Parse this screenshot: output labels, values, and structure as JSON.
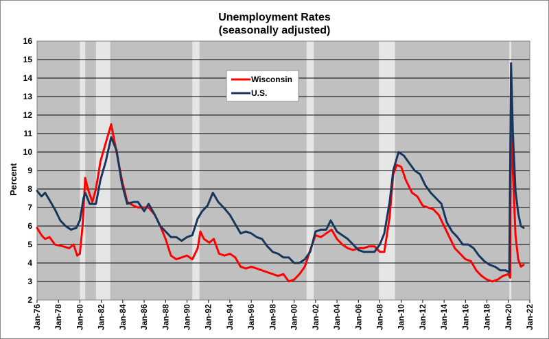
{
  "chart_data": {
    "type": "line",
    "title": "Unemployment Rates",
    "subtitle": "(seasonally adjusted)",
    "ylabel": "Percent",
    "xlabel": "",
    "ylim": [
      2,
      16
    ],
    "xlim": [
      "1976-01",
      "2022-01"
    ],
    "yticks": [
      "2",
      "3",
      "4",
      "5",
      "6",
      "7",
      "8",
      "9",
      "10",
      "11",
      "12",
      "13",
      "14",
      "15",
      "16"
    ],
    "xticks": [
      "Jan-76",
      "Jan-78",
      "Jan-80",
      "Jan-82",
      "Jan-84",
      "Jan-86",
      "Jan-88",
      "Jan-90",
      "Jan-92",
      "Jan-94",
      "Jan-96",
      "Jan-98",
      "Jan-00",
      "Jan-02",
      "Jan-04",
      "Jan-06",
      "Jan-08",
      "Jan-10",
      "Jan-12",
      "Jan-14",
      "Jan-16",
      "Jan-18",
      "Jan-20",
      "Jan-22"
    ],
    "grid": true,
    "legend_position": "top-center",
    "background_color": "#c0c0c0",
    "recession_color": "#e6e6e6",
    "recessions": [
      [
        "1980-01",
        "1980-07"
      ],
      [
        "1981-07",
        "1982-11"
      ],
      [
        "1990-07",
        "1991-03"
      ],
      [
        "2001-03",
        "2001-11"
      ],
      [
        "2007-12",
        "2009-06"
      ],
      [
        "2020-02",
        "2020-04"
      ]
    ],
    "series": [
      {
        "name": "Wisconsin",
        "color": "#ff0000",
        "points": [
          [
            "1976-01",
            5.9
          ],
          [
            "1976-06",
            5.5
          ],
          [
            "1976-10",
            5.3
          ],
          [
            "1977-03",
            5.4
          ],
          [
            "1977-09",
            5.0
          ],
          [
            "1978-06",
            4.9
          ],
          [
            "1979-01",
            4.8
          ],
          [
            "1979-06",
            5.0
          ],
          [
            "1979-10",
            4.4
          ],
          [
            "1980-01",
            4.5
          ],
          [
            "1980-04",
            6.0
          ],
          [
            "1980-07",
            8.6
          ],
          [
            "1980-10",
            8.0
          ],
          [
            "1981-03",
            7.3
          ],
          [
            "1981-07",
            8.0
          ],
          [
            "1981-12",
            9.5
          ],
          [
            "1982-06",
            10.5
          ],
          [
            "1982-12",
            11.5
          ],
          [
            "1983-06",
            10.0
          ],
          [
            "1983-12",
            8.5
          ],
          [
            "1984-06",
            7.3
          ],
          [
            "1985-01",
            7.1
          ],
          [
            "1985-06",
            7.0
          ],
          [
            "1986-06",
            7.0
          ],
          [
            "1987-01",
            6.6
          ],
          [
            "1987-07",
            6.0
          ],
          [
            "1988-01",
            5.3
          ],
          [
            "1988-07",
            4.4
          ],
          [
            "1989-01",
            4.2
          ],
          [
            "1989-07",
            4.3
          ],
          [
            "1990-01",
            4.4
          ],
          [
            "1990-07",
            4.2
          ],
          [
            "1991-01",
            4.8
          ],
          [
            "1991-04",
            5.7
          ],
          [
            "1991-08",
            5.3
          ],
          [
            "1992-02",
            5.1
          ],
          [
            "1992-07",
            5.3
          ],
          [
            "1993-01",
            4.5
          ],
          [
            "1993-07",
            4.4
          ],
          [
            "1994-01",
            4.5
          ],
          [
            "1994-07",
            4.3
          ],
          [
            "1995-01",
            3.8
          ],
          [
            "1995-07",
            3.7
          ],
          [
            "1996-01",
            3.8
          ],
          [
            "1996-07",
            3.7
          ],
          [
            "1997-01",
            3.6
          ],
          [
            "1997-07",
            3.5
          ],
          [
            "1998-01",
            3.4
          ],
          [
            "1998-07",
            3.3
          ],
          [
            "1999-01",
            3.4
          ],
          [
            "1999-07",
            3.0
          ],
          [
            "2000-01",
            3.1
          ],
          [
            "2000-07",
            3.4
          ],
          [
            "2001-01",
            3.8
          ],
          [
            "2001-07",
            4.7
          ],
          [
            "2002-01",
            5.5
          ],
          [
            "2002-07",
            5.4
          ],
          [
            "2003-01",
            5.6
          ],
          [
            "2003-07",
            5.8
          ],
          [
            "2004-01",
            5.3
          ],
          [
            "2004-07",
            5.0
          ],
          [
            "2005-01",
            4.8
          ],
          [
            "2005-07",
            4.7
          ],
          [
            "2006-01",
            4.8
          ],
          [
            "2006-07",
            4.8
          ],
          [
            "2007-01",
            4.9
          ],
          [
            "2007-07",
            4.9
          ],
          [
            "2008-01",
            4.6
          ],
          [
            "2008-06",
            4.6
          ],
          [
            "2008-12",
            6.5
          ],
          [
            "2009-04",
            8.8
          ],
          [
            "2009-08",
            9.3
          ],
          [
            "2010-01",
            9.2
          ],
          [
            "2010-06",
            8.5
          ],
          [
            "2011-01",
            7.8
          ],
          [
            "2011-07",
            7.6
          ],
          [
            "2012-01",
            7.1
          ],
          [
            "2012-07",
            7.0
          ],
          [
            "2013-01",
            6.9
          ],
          [
            "2013-07",
            6.6
          ],
          [
            "2014-01",
            6.0
          ],
          [
            "2014-07",
            5.4
          ],
          [
            "2015-01",
            4.8
          ],
          [
            "2015-07",
            4.5
          ],
          [
            "2016-01",
            4.2
          ],
          [
            "2016-07",
            4.1
          ],
          [
            "2017-01",
            3.6
          ],
          [
            "2017-07",
            3.3
          ],
          [
            "2018-01",
            3.1
          ],
          [
            "2018-07",
            3.0
          ],
          [
            "2019-01",
            3.1
          ],
          [
            "2019-07",
            3.3
          ],
          [
            "2020-01",
            3.4
          ],
          [
            "2020-03",
            3.2
          ],
          [
            "2020-04",
            14.1
          ],
          [
            "2020-06",
            9.0
          ],
          [
            "2020-09",
            5.5
          ],
          [
            "2020-12",
            4.2
          ],
          [
            "2021-03",
            3.8
          ],
          [
            "2021-06",
            3.9
          ]
        ]
      },
      {
        "name": "U.S.",
        "color": "#17365d",
        "points": [
          [
            "1976-01",
            7.9
          ],
          [
            "1976-06",
            7.6
          ],
          [
            "1976-10",
            7.8
          ],
          [
            "1977-03",
            7.4
          ],
          [
            "1977-09",
            6.9
          ],
          [
            "1978-03",
            6.3
          ],
          [
            "1978-09",
            6.0
          ],
          [
            "1979-03",
            5.8
          ],
          [
            "1979-09",
            5.9
          ],
          [
            "1980-01",
            6.3
          ],
          [
            "1980-05",
            7.5
          ],
          [
            "1980-07",
            7.8
          ],
          [
            "1980-12",
            7.2
          ],
          [
            "1981-07",
            7.2
          ],
          [
            "1981-12",
            8.5
          ],
          [
            "1982-06",
            9.5
          ],
          [
            "1982-12",
            10.8
          ],
          [
            "1983-06",
            10.1
          ],
          [
            "1983-12",
            8.3
          ],
          [
            "1984-06",
            7.2
          ],
          [
            "1985-01",
            7.3
          ],
          [
            "1985-06",
            7.3
          ],
          [
            "1986-01",
            6.8
          ],
          [
            "1986-06",
            7.2
          ],
          [
            "1987-01",
            6.6
          ],
          [
            "1987-07",
            6.0
          ],
          [
            "1988-01",
            5.7
          ],
          [
            "1988-07",
            5.4
          ],
          [
            "1989-01",
            5.4
          ],
          [
            "1989-07",
            5.2
          ],
          [
            "1990-01",
            5.4
          ],
          [
            "1990-07",
            5.5
          ],
          [
            "1991-01",
            6.4
          ],
          [
            "1991-06",
            6.8
          ],
          [
            "1991-12",
            7.1
          ],
          [
            "1992-06",
            7.8
          ],
          [
            "1992-12",
            7.3
          ],
          [
            "1993-06",
            7.0
          ],
          [
            "1994-01",
            6.6
          ],
          [
            "1994-07",
            6.1
          ],
          [
            "1995-01",
            5.6
          ],
          [
            "1995-07",
            5.7
          ],
          [
            "1996-01",
            5.6
          ],
          [
            "1996-07",
            5.4
          ],
          [
            "1997-01",
            5.3
          ],
          [
            "1997-07",
            4.9
          ],
          [
            "1998-01",
            4.6
          ],
          [
            "1998-07",
            4.5
          ],
          [
            "1999-01",
            4.3
          ],
          [
            "1999-07",
            4.3
          ],
          [
            "2000-01",
            4.0
          ],
          [
            "2000-07",
            4.0
          ],
          [
            "2001-01",
            4.2
          ],
          [
            "2001-07",
            4.6
          ],
          [
            "2002-01",
            5.7
          ],
          [
            "2002-07",
            5.8
          ],
          [
            "2003-01",
            5.8
          ],
          [
            "2003-06",
            6.3
          ],
          [
            "2004-01",
            5.7
          ],
          [
            "2004-07",
            5.5
          ],
          [
            "2005-01",
            5.3
          ],
          [
            "2005-07",
            5.0
          ],
          [
            "2006-01",
            4.7
          ],
          [
            "2006-07",
            4.6
          ],
          [
            "2007-01",
            4.6
          ],
          [
            "2007-07",
            4.6
          ],
          [
            "2008-01",
            5.0
          ],
          [
            "2008-06",
            5.6
          ],
          [
            "2008-12",
            7.3
          ],
          [
            "2009-04",
            9.0
          ],
          [
            "2009-10",
            10.0
          ],
          [
            "2010-04",
            9.8
          ],
          [
            "2010-10",
            9.4
          ],
          [
            "2011-04",
            9.0
          ],
          [
            "2011-10",
            8.8
          ],
          [
            "2012-04",
            8.2
          ],
          [
            "2012-10",
            7.8
          ],
          [
            "2013-04",
            7.5
          ],
          [
            "2013-10",
            7.2
          ],
          [
            "2014-04",
            6.2
          ],
          [
            "2014-10",
            5.7
          ],
          [
            "2015-04",
            5.4
          ],
          [
            "2015-10",
            5.0
          ],
          [
            "2016-04",
            5.0
          ],
          [
            "2016-10",
            4.8
          ],
          [
            "2017-04",
            4.4
          ],
          [
            "2017-10",
            4.1
          ],
          [
            "2018-04",
            3.9
          ],
          [
            "2018-10",
            3.8
          ],
          [
            "2019-04",
            3.6
          ],
          [
            "2019-10",
            3.6
          ],
          [
            "2020-02",
            3.5
          ],
          [
            "2020-04",
            14.8
          ],
          [
            "2020-06",
            11.1
          ],
          [
            "2020-09",
            7.9
          ],
          [
            "2020-12",
            6.7
          ],
          [
            "2021-03",
            6.0
          ],
          [
            "2021-06",
            5.9
          ]
        ]
      }
    ]
  }
}
